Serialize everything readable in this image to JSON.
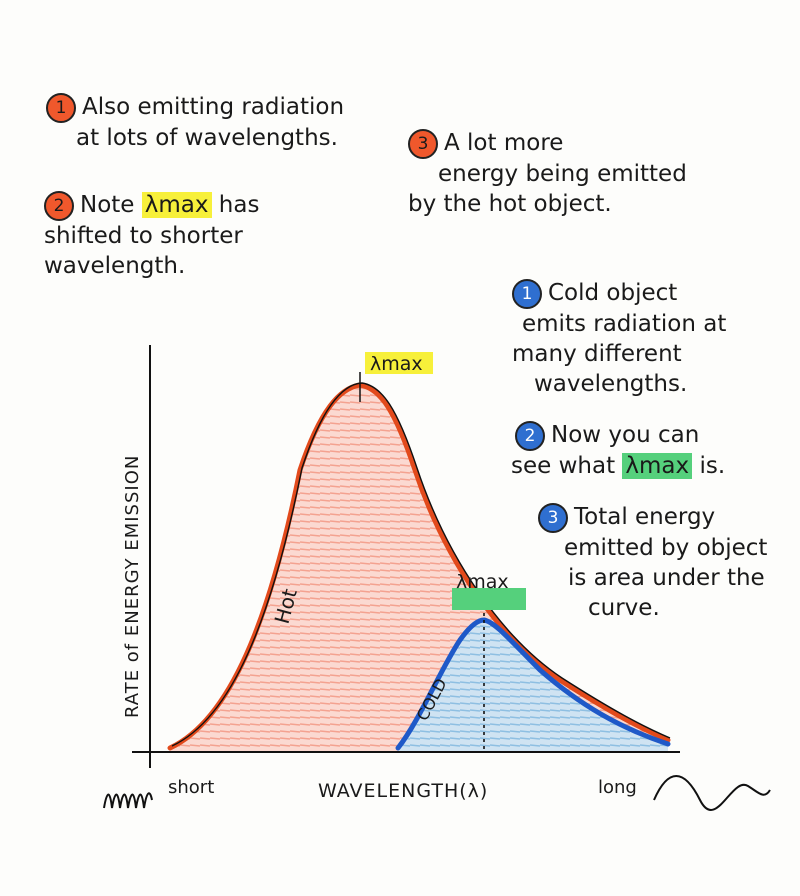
{
  "colors": {
    "hot_marker": "#f0582c",
    "cold_marker": "#2f6fd0",
    "hot_fill": "#f7b3a4",
    "cold_fill": "#a8cde8",
    "hot_curve": "#e24a1c",
    "cold_curve": "#1f59c8",
    "highlight_yellow": "#f7f03a",
    "highlight_green": "#55d07c"
  },
  "hot_notes": [
    {
      "num": "1",
      "lines": [
        "Also emitting radiation",
        "at lots of wavelengths."
      ]
    },
    {
      "num": "2",
      "pre": "Note ",
      "highlight": "λmax",
      "post": " has",
      "lines": [
        "shifted to shorter",
        "wavelength."
      ]
    },
    {
      "num": "3",
      "lines": [
        "A lot more",
        "energy being emitted",
        "by the hot object."
      ]
    }
  ],
  "cold_notes": [
    {
      "num": "1",
      "lines": [
        "Cold object",
        "emits radiation at",
        "many different",
        "wavelengths."
      ]
    },
    {
      "num": "2",
      "lines": [
        "Now you can"
      ],
      "pre": "see what ",
      "highlight": "λmax",
      "post": " is."
    },
    {
      "num": "3",
      "lines": [
        "Total energy",
        "emitted by object",
        "is area under the",
        "curve."
      ]
    }
  ],
  "graph": {
    "y_label": "RATE of ENERGY EMISSION",
    "x_label": "WAVELENGTH(λ)",
    "short_label": "short",
    "long_label": "long",
    "hot_label": "Hot",
    "cold_label": "COLD",
    "hot_lambda_label": "λmax",
    "cold_lambda_label": "λmax"
  }
}
